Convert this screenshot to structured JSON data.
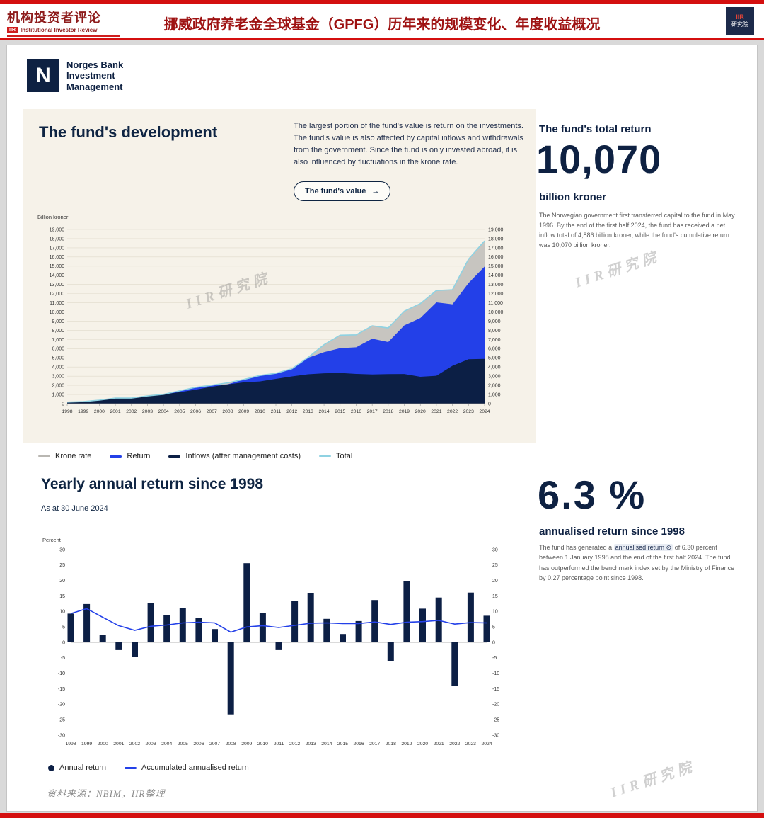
{
  "header": {
    "top_brand": {
      "cn": "机构投资者评论",
      "badge": "IIR",
      "en": "Institutional Investor Review"
    },
    "title": "挪威政府养老金全球基金（GPFG）历年来的规模变化、年度收益概况",
    "corner_badge": {
      "line1": "IIR",
      "line2": "研究院"
    }
  },
  "nbim": {
    "logo_letter": "N",
    "name_lines": [
      "Norges Bank",
      "Investment",
      "Management"
    ]
  },
  "development": {
    "title": "The fund's development",
    "description": "The largest portion of the fund's value is return on the investments. The fund's value is also affected by capital inflows and withdrawals from the government. Since the fund is only invested abroad, it is also influenced by fluctuations in the krone rate.",
    "button_label": "The fund's value",
    "button_arrow": "→",
    "axis_unit": "Billion kroner"
  },
  "total_return": {
    "heading": "The fund's total return",
    "value": "10,070",
    "unit": "billion kroner",
    "description": "The Norwegian government first transferred capital to the fund in May 1996. By the end of the first half 2024, the fund has received a net inflow total of 4,886 billion kroner, while the fund's cumulative return was 10,070 billion kroner."
  },
  "yearly": {
    "title": "Yearly annual return since 1998",
    "as_at": "As at 30 June 2024",
    "axis_unit": "Percent"
  },
  "annualised": {
    "value": "6.3 %",
    "label": "annualised return since 1998",
    "desc_pre": "The fund has generated a ",
    "chip": "annualised return",
    "chip_icon": "⊙",
    "desc_post": " of 6.30 percent between 1 January 1998 and the end of the first half 2024. The fund has outperformed the benchmark index set by the Ministry of Finance by 0.27 percentage point since 1998."
  },
  "source_note": "资料来源：NBIM，IIR整理",
  "watermark": "IIR研究院",
  "chart_data": [
    {
      "type": "area",
      "title": "The fund's development",
      "ylabel": "Billion kroner",
      "ylim": [
        0,
        19000
      ],
      "ytick_step": 1000,
      "years": [
        1998,
        1999,
        2000,
        2001,
        2002,
        2003,
        2004,
        2005,
        2006,
        2007,
        2008,
        2009,
        2010,
        2011,
        2012,
        2013,
        2014,
        2015,
        2016,
        2017,
        2018,
        2019,
        2020,
        2021,
        2022,
        2023,
        2024
      ],
      "series": {
        "inflows": [
          168,
          217,
          362,
          608,
          781,
          885,
          1023,
          1243,
          1531,
          1845,
          2112,
          2323,
          2428,
          2700,
          2975,
          3207,
          3312,
          3352,
          3247,
          3188,
          3222,
          3237,
          2938,
          3046,
          4135,
          4845,
          4886
        ],
        "return_cumulative": [
          4,
          15,
          20,
          -10,
          -90,
          60,
          140,
          260,
          390,
          480,
          -230,
          400,
          650,
          600,
          950,
          1800,
          2300,
          2700,
          2900,
          3900,
          3500,
          5300,
          6400,
          8000,
          6700,
          8300,
          10070
        ],
        "krone_rate_effect": [
          0,
          -10,
          4,
          16,
          -82,
          -100,
          -147,
          -104,
          -137,
          -306,
          393,
          -83,
          -1,
          12,
          -109,
          31,
          819,
          1419,
          1363,
          1400,
          1534,
          1551,
          1576,
          1294,
          1594,
          2620,
          2789
        ],
        "total": [
          172,
          222,
          386,
          614,
          609,
          845,
          1016,
          1399,
          1784,
          2019,
          2275,
          2640,
          3077,
          3312,
          3816,
          5038,
          6431,
          7471,
          7510,
          8488,
          8256,
          10088,
          10914,
          12340,
          12429,
          15765,
          17745
        ]
      },
      "colors": {
        "inflows": "#0c1f45",
        "return": "#2340e8",
        "krone": "#c7c5c0",
        "total": "#8fd2e2"
      },
      "legend": [
        {
          "label": "Krone rate",
          "color": "#b9b7b2"
        },
        {
          "label": "Return",
          "color": "#2340e8"
        },
        {
          "label": "Inflows (after management costs)",
          "color": "#0c1f45"
        },
        {
          "label": "Total",
          "color": "#8fd2e2"
        }
      ]
    },
    {
      "type": "bar",
      "title": "Yearly annual return since 1998",
      "ylabel": "Percent",
      "ylim": [
        -30,
        30
      ],
      "ytick_step": 5,
      "years": [
        1998,
        1999,
        2000,
        2001,
        2002,
        2003,
        2004,
        2005,
        2006,
        2007,
        2008,
        2009,
        2010,
        2011,
        2012,
        2013,
        2014,
        2015,
        2016,
        2017,
        2018,
        2019,
        2020,
        2021,
        2022,
        2023,
        2024
      ],
      "series": [
        {
          "name": "Annual return",
          "values": [
            9.3,
            12.4,
            2.5,
            -2.5,
            -4.7,
            12.6,
            8.9,
            11.1,
            7.9,
            4.3,
            -23.3,
            25.6,
            9.6,
            -2.5,
            13.4,
            16.0,
            7.6,
            2.7,
            6.9,
            13.7,
            -6.1,
            19.9,
            10.9,
            14.5,
            -14.1,
            16.1,
            8.6
          ]
        },
        {
          "name": "Accumulated annualised return",
          "values": [
            9.3,
            10.9,
            8.1,
            5.4,
            3.9,
            5.2,
            5.6,
            6.3,
            6.5,
            6.3,
            3.3,
            5.0,
            5.4,
            4.8,
            5.5,
            6.2,
            6.3,
            6.1,
            6.1,
            6.6,
            5.8,
            6.5,
            6.7,
            7.1,
            5.9,
            6.4,
            6.3
          ]
        }
      ],
      "colors": {
        "bar": "#0c1f45",
        "line": "#2340e8"
      },
      "legend": [
        {
          "label": "Annual return",
          "color": "#0c1f45",
          "marker": "dot"
        },
        {
          "label": "Accumulated annualised return",
          "color": "#2340e8",
          "marker": "line"
        }
      ]
    }
  ]
}
